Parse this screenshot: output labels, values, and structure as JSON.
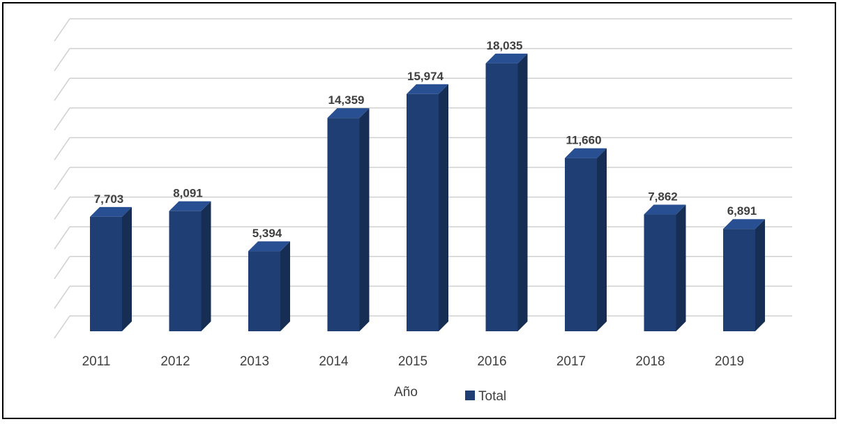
{
  "chart_data": {
    "type": "bar",
    "categories": [
      "2011",
      "2012",
      "2013",
      "2014",
      "2015",
      "2016",
      "2017",
      "2018",
      "2019"
    ],
    "series": [
      {
        "name": "Total",
        "values": [
          7703,
          8091,
          5394,
          14359,
          15974,
          18035,
          11660,
          7862,
          6891
        ],
        "value_labels": [
          "7,703",
          "8,091",
          "5,394",
          "14,359",
          "15,974",
          "18,035",
          "11,660",
          "7,862",
          "6,891"
        ],
        "color": "#1f3f74"
      }
    ],
    "xlabel": "Año",
    "ylabel": "",
    "ylim": [
      0,
      20000
    ],
    "grid": true,
    "legend_position": "bottom",
    "style": "3d-column"
  }
}
